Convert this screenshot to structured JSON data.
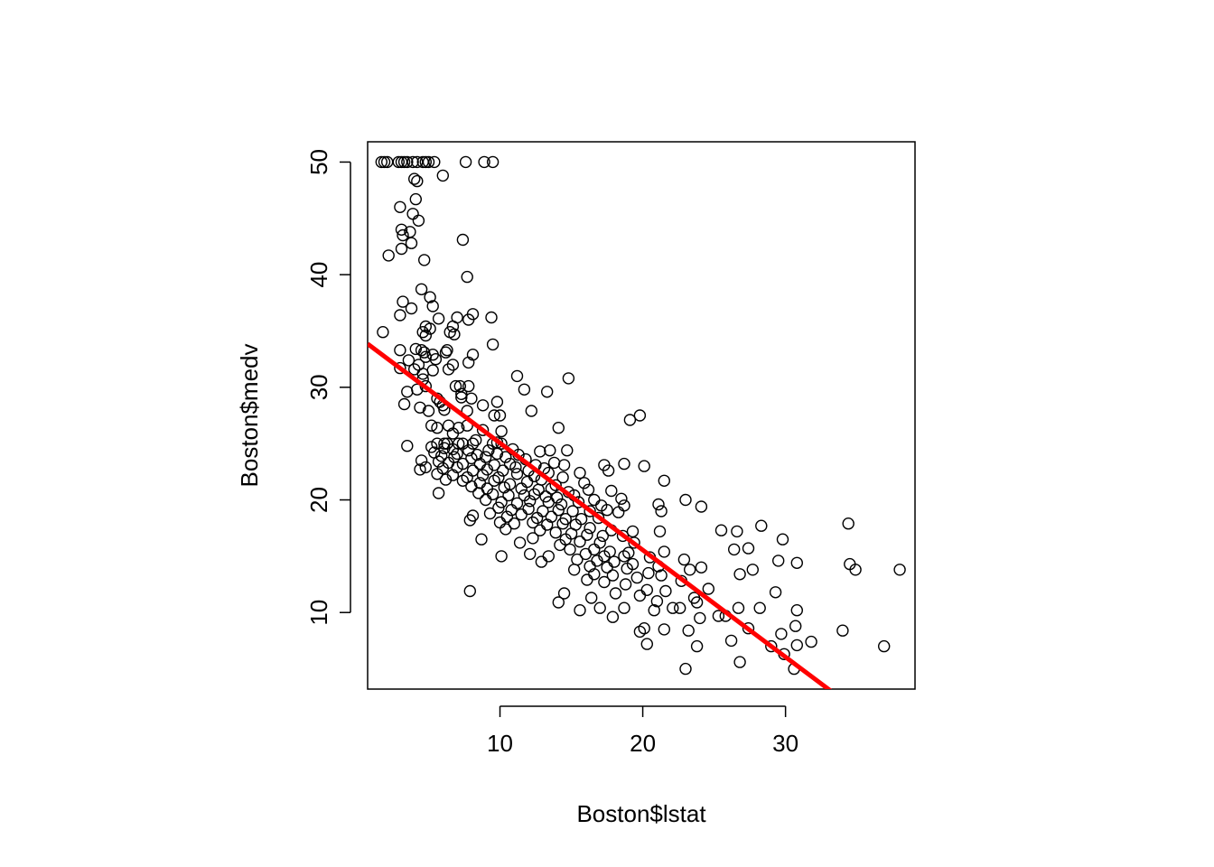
{
  "chart_data": {
    "type": "scatter",
    "title": "",
    "xlabel": "Boston$lstat",
    "ylabel": "Boston$medv",
    "xlim": [
      0.73,
      39.07
    ],
    "ylim": [
      3.2,
      51.8
    ],
    "x_ticks": [
      10,
      20,
      30
    ],
    "y_ticks": [
      10,
      20,
      30,
      40,
      50
    ],
    "x_tick_labels": [
      "10",
      "20",
      "30"
    ],
    "y_tick_labels": [
      "10",
      "20",
      "30",
      "40",
      "50"
    ],
    "grid": false,
    "point_style": "open-circle",
    "point_color": "#000000",
    "fit_line": {
      "intercept": 34.55,
      "slope": -0.95,
      "color": "#ff0000"
    },
    "points": [
      [
        1.7,
        50
      ],
      [
        1.9,
        50
      ],
      [
        2.1,
        50
      ],
      [
        2.9,
        50
      ],
      [
        3.1,
        50
      ],
      [
        3.3,
        50
      ],
      [
        3.5,
        50
      ],
      [
        3.9,
        50
      ],
      [
        4.2,
        50
      ],
      [
        4.6,
        50
      ],
      [
        4.8,
        50
      ],
      [
        5.0,
        50
      ],
      [
        5.4,
        50
      ],
      [
        7.6,
        50
      ],
      [
        8.9,
        50
      ],
      [
        9.5,
        50
      ],
      [
        6.0,
        48.8
      ],
      [
        4.0,
        48.5
      ],
      [
        4.2,
        48.3
      ],
      [
        4.1,
        46.7
      ],
      [
        3.0,
        46.0
      ],
      [
        3.9,
        45.4
      ],
      [
        4.3,
        44.8
      ],
      [
        3.1,
        44.0
      ],
      [
        3.7,
        43.8
      ],
      [
        3.2,
        43.5
      ],
      [
        3.8,
        42.8
      ],
      [
        7.4,
        43.1
      ],
      [
        3.1,
        42.3
      ],
      [
        2.2,
        41.7
      ],
      [
        4.7,
        41.3
      ],
      [
        7.7,
        39.8
      ],
      [
        4.5,
        38.7
      ],
      [
        5.1,
        38.0
      ],
      [
        3.2,
        37.6
      ],
      [
        5.3,
        37.2
      ],
      [
        3.8,
        37.0
      ],
      [
        8.1,
        36.5
      ],
      [
        7.0,
        36.2
      ],
      [
        9.4,
        36.2
      ],
      [
        3.0,
        36.4
      ],
      [
        7.8,
        36.0
      ],
      [
        5.7,
        36.1
      ],
      [
        6.7,
        35.4
      ],
      [
        4.8,
        35.4
      ],
      [
        5.1,
        35.2
      ],
      [
        4.6,
        34.9
      ],
      [
        6.5,
        34.9
      ],
      [
        1.8,
        34.9
      ],
      [
        4.8,
        34.6
      ],
      [
        6.8,
        34.7
      ],
      [
        9.5,
        33.8
      ],
      [
        4.1,
        33.4
      ],
      [
        3.0,
        33.3
      ],
      [
        4.5,
        33.3
      ],
      [
        6.3,
        33.3
      ],
      [
        4.7,
        33.1
      ],
      [
        6.2,
        33.1
      ],
      [
        8.1,
        32.9
      ],
      [
        5.3,
        32.9
      ],
      [
        3.6,
        32.4
      ],
      [
        4.8,
        32.7
      ],
      [
        5.5,
        32.5
      ],
      [
        4.3,
        32.0
      ],
      [
        6.7,
        32.0
      ],
      [
        7.8,
        32.2
      ],
      [
        4.0,
        31.6
      ],
      [
        5.3,
        31.5
      ],
      [
        4.6,
        31.2
      ],
      [
        6.4,
        31.6
      ],
      [
        3.0,
        31.7
      ],
      [
        11.2,
        31.0
      ],
      [
        14.8,
        30.8
      ],
      [
        4.6,
        30.7
      ],
      [
        7.2,
        30.1
      ],
      [
        6.9,
        30.1
      ],
      [
        7.8,
        30.1
      ],
      [
        4.8,
        30.1
      ],
      [
        4.2,
        29.8
      ],
      [
        3.5,
        29.6
      ],
      [
        11.7,
        29.8
      ],
      [
        13.3,
        29.6
      ],
      [
        7.3,
        29.1
      ],
      [
        7.3,
        29.4
      ],
      [
        8.0,
        29.0
      ],
      [
        5.6,
        29.0
      ],
      [
        5.8,
        28.7
      ],
      [
        3.3,
        28.5
      ],
      [
        6.0,
        28.4
      ],
      [
        8.8,
        28.4
      ],
      [
        4.4,
        28.2
      ],
      [
        9.8,
        28.7
      ],
      [
        6.1,
        28.0
      ],
      [
        7.7,
        27.9
      ],
      [
        5.0,
        27.9
      ],
      [
        9.6,
        27.5
      ],
      [
        10.0,
        27.5
      ],
      [
        12.2,
        27.9
      ],
      [
        19.8,
        27.5
      ],
      [
        19.1,
        27.1
      ],
      [
        6.4,
        26.6
      ],
      [
        7.7,
        26.6
      ],
      [
        5.2,
        26.6
      ],
      [
        5.6,
        26.4
      ],
      [
        7.1,
        26.4
      ],
      [
        8.8,
        26.2
      ],
      [
        10.1,
        26.1
      ],
      [
        14.1,
        26.4
      ],
      [
        6.7,
        25.9
      ],
      [
        8.3,
        25.3
      ],
      [
        9.8,
        25.1
      ],
      [
        5.6,
        25.0
      ],
      [
        6.1,
        25.0
      ],
      [
        6.3,
        25.0
      ],
      [
        7.1,
        25.0
      ],
      [
        7.4,
        25.0
      ],
      [
        8.1,
        25.0
      ],
      [
        9.5,
        25.0
      ],
      [
        10.1,
        25.0
      ],
      [
        3.5,
        24.8
      ],
      [
        5.2,
        24.7
      ],
      [
        6.1,
        24.6
      ],
      [
        6.7,
        24.5
      ],
      [
        7.8,
        24.4
      ],
      [
        9.2,
        24.4
      ],
      [
        10.9,
        24.5
      ],
      [
        12.8,
        24.3
      ],
      [
        14.7,
        24.4
      ],
      [
        5.4,
        24.2
      ],
      [
        7.0,
        24.1
      ],
      [
        8.4,
        24.0
      ],
      [
        9.8,
        24.1
      ],
      [
        11.3,
        24.0
      ],
      [
        13.5,
        24.4
      ],
      [
        5.9,
        23.9
      ],
      [
        6.8,
        23.8
      ],
      [
        8.0,
        23.7
      ],
      [
        9.0,
        23.8
      ],
      [
        10.4,
        23.8
      ],
      [
        11.8,
        23.6
      ],
      [
        4.5,
        23.5
      ],
      [
        5.7,
        23.4
      ],
      [
        6.4,
        23.3
      ],
      [
        7.4,
        23.2
      ],
      [
        8.6,
        23.2
      ],
      [
        9.6,
        23.1
      ],
      [
        10.7,
        23.2
      ],
      [
        12.5,
        23.1
      ],
      [
        13.8,
        23.3
      ],
      [
        14.5,
        23.1
      ],
      [
        17.3,
        23.1
      ],
      [
        18.7,
        23.2
      ],
      [
        20.1,
        23.0
      ],
      [
        4.8,
        22.9
      ],
      [
        6.0,
        22.8
      ],
      [
        7.0,
        22.9
      ],
      [
        8.1,
        22.6
      ],
      [
        9.1,
        22.7
      ],
      [
        10.2,
        22.6
      ],
      [
        11.1,
        22.9
      ],
      [
        12.0,
        22.6
      ],
      [
        13.1,
        22.8
      ],
      [
        15.6,
        22.4
      ],
      [
        17.6,
        22.6
      ],
      [
        4.4,
        22.7
      ],
      [
        5.6,
        22.3
      ],
      [
        6.7,
        22.2
      ],
      [
        7.7,
        22.0
      ],
      [
        8.8,
        22.2
      ],
      [
        9.9,
        22.0
      ],
      [
        11.2,
        22.3
      ],
      [
        12.4,
        22.1
      ],
      [
        13.4,
        22.4
      ],
      [
        14.4,
        22.0
      ],
      [
        6.2,
        21.8
      ],
      [
        7.4,
        21.7
      ],
      [
        8.6,
        21.5
      ],
      [
        9.6,
        21.7
      ],
      [
        10.7,
        21.4
      ],
      [
        11.9,
        21.6
      ],
      [
        12.9,
        21.8
      ],
      [
        13.9,
        21.3
      ],
      [
        15.9,
        21.5
      ],
      [
        21.5,
        21.7
      ],
      [
        8.0,
        21.2
      ],
      [
        9.1,
        21.0
      ],
      [
        10.3,
        21.1
      ],
      [
        11.5,
        21.0
      ],
      [
        12.7,
        20.9
      ],
      [
        13.6,
        21.0
      ],
      [
        14.8,
        20.7
      ],
      [
        16.2,
        20.9
      ],
      [
        17.8,
        20.8
      ],
      [
        5.7,
        20.6
      ],
      [
        8.5,
        20.6
      ],
      [
        9.5,
        20.5
      ],
      [
        10.6,
        20.4
      ],
      [
        11.7,
        20.4
      ],
      [
        12.4,
        20.5
      ],
      [
        13.2,
        20.3
      ],
      [
        14.0,
        20.2
      ],
      [
        15.2,
        20.4
      ],
      [
        16.6,
        20.0
      ],
      [
        18.5,
        20.1
      ],
      [
        23.0,
        20.0
      ],
      [
        9.0,
        20.0
      ],
      [
        10.1,
        19.8
      ],
      [
        11.2,
        19.7
      ],
      [
        12.1,
        19.9
      ],
      [
        13.4,
        19.8
      ],
      [
        14.3,
        19.6
      ],
      [
        15.5,
        19.8
      ],
      [
        17.1,
        19.5
      ],
      [
        18.7,
        19.5
      ],
      [
        21.1,
        19.6
      ],
      [
        24.1,
        19.4
      ],
      [
        9.9,
        19.3
      ],
      [
        10.8,
        19.1
      ],
      [
        12.0,
        19.2
      ],
      [
        13.0,
        19.0
      ],
      [
        14.1,
        19.1
      ],
      [
        15.1,
        19.0
      ],
      [
        16.3,
        19.0
      ],
      [
        17.5,
        19.1
      ],
      [
        18.3,
        18.9
      ],
      [
        21.3,
        19.0
      ],
      [
        8.1,
        18.6
      ],
      [
        9.3,
        18.8
      ],
      [
        10.5,
        18.5
      ],
      [
        11.5,
        18.7
      ],
      [
        12.6,
        18.4
      ],
      [
        13.6,
        18.5
      ],
      [
        14.6,
        18.3
      ],
      [
        15.7,
        18.3
      ],
      [
        16.9,
        18.4
      ],
      [
        7.9,
        18.2
      ],
      [
        10.0,
        18.0
      ],
      [
        11.0,
        17.9
      ],
      [
        12.3,
        18.0
      ],
      [
        13.3,
        17.8
      ],
      [
        14.4,
        17.9
      ],
      [
        15.3,
        17.8
      ],
      [
        16.3,
        17.5
      ],
      [
        17.8,
        17.3
      ],
      [
        19.3,
        17.2
      ],
      [
        21.2,
        17.2
      ],
      [
        25.5,
        17.3
      ],
      [
        26.6,
        17.2
      ],
      [
        28.3,
        17.7
      ],
      [
        34.4,
        17.9
      ],
      [
        10.4,
        17.4
      ],
      [
        12.8,
        17.3
      ],
      [
        13.9,
        17.1
      ],
      [
        15.0,
        17.0
      ],
      [
        16.1,
        16.9
      ],
      [
        17.2,
        16.8
      ],
      [
        18.6,
        16.8
      ],
      [
        12.3,
        16.6
      ],
      [
        14.6,
        16.5
      ],
      [
        15.6,
        16.3
      ],
      [
        17.0,
        16.2
      ],
      [
        19.4,
        16.2
      ],
      [
        29.8,
        16.5
      ],
      [
        8.7,
        16.5
      ],
      [
        11.4,
        16.2
      ],
      [
        14.2,
        16.0
      ],
      [
        16.6,
        15.6
      ],
      [
        17.7,
        15.4
      ],
      [
        19.0,
        15.3
      ],
      [
        21.5,
        15.4
      ],
      [
        26.4,
        15.6
      ],
      [
        27.4,
        15.7
      ],
      [
        12.1,
        15.2
      ],
      [
        14.9,
        15.6
      ],
      [
        16.0,
        15.2
      ],
      [
        17.3,
        15.0
      ],
      [
        18.7,
        15.0
      ],
      [
        20.5,
        14.9
      ],
      [
        22.9,
        14.7
      ],
      [
        10.1,
        15.0
      ],
      [
        13.4,
        15.0
      ],
      [
        15.4,
        14.7
      ],
      [
        16.8,
        14.6
      ],
      [
        18.0,
        14.5
      ],
      [
        19.3,
        14.3
      ],
      [
        21.1,
        14.1
      ],
      [
        24.1,
        14.0
      ],
      [
        29.5,
        14.6
      ],
      [
        30.8,
        14.4
      ],
      [
        34.5,
        14.3
      ],
      [
        34.9,
        13.8
      ],
      [
        38.0,
        13.8
      ],
      [
        12.9,
        14.5
      ],
      [
        16.3,
        14.1
      ],
      [
        17.5,
        14.0
      ],
      [
        18.9,
        13.9
      ],
      [
        20.4,
        13.5
      ],
      [
        23.3,
        13.8
      ],
      [
        26.8,
        13.4
      ],
      [
        27.7,
        13.8
      ],
      [
        15.2,
        13.8
      ],
      [
        16.6,
        13.4
      ],
      [
        17.9,
        13.3
      ],
      [
        19.6,
        13.1
      ],
      [
        21.3,
        13.3
      ],
      [
        22.7,
        12.8
      ],
      [
        24.6,
        12.1
      ],
      [
        16.1,
        12.9
      ],
      [
        17.3,
        12.7
      ],
      [
        18.8,
        12.5
      ],
      [
        20.3,
        12.0
      ],
      [
        21.6,
        11.9
      ],
      [
        23.6,
        11.3
      ],
      [
        29.3,
        11.8
      ],
      [
        14.5,
        11.7
      ],
      [
        16.4,
        11.3
      ],
      [
        18.1,
        11.7
      ],
      [
        19.8,
        11.5
      ],
      [
        21.0,
        11.0
      ],
      [
        22.6,
        10.4
      ],
      [
        23.8,
        10.9
      ],
      [
        26.7,
        10.4
      ],
      [
        14.1,
        10.9
      ],
      [
        15.6,
        10.2
      ],
      [
        17.0,
        10.4
      ],
      [
        18.7,
        10.4
      ],
      [
        20.8,
        10.2
      ],
      [
        22.1,
        10.4
      ],
      [
        25.3,
        9.7
      ],
      [
        28.2,
        10.4
      ],
      [
        30.8,
        10.2
      ],
      [
        7.9,
        11.9
      ],
      [
        17.9,
        9.6
      ],
      [
        20.1,
        8.6
      ],
      [
        21.5,
        8.5
      ],
      [
        24.0,
        9.5
      ],
      [
        25.8,
        9.7
      ],
      [
        27.4,
        8.6
      ],
      [
        29.7,
        8.1
      ],
      [
        30.7,
        8.8
      ],
      [
        19.8,
        8.3
      ],
      [
        23.2,
        8.4
      ],
      [
        26.2,
        7.5
      ],
      [
        29.0,
        7.0
      ],
      [
        31.8,
        7.4
      ],
      [
        34.0,
        8.4
      ],
      [
        36.9,
        7.0
      ],
      [
        20.3,
        7.2
      ],
      [
        23.8,
        7.0
      ],
      [
        29.9,
        6.3
      ],
      [
        30.8,
        7.1
      ],
      [
        26.8,
        5.6
      ],
      [
        23.0,
        5.0
      ],
      [
        30.6,
        5.0
      ]
    ]
  }
}
